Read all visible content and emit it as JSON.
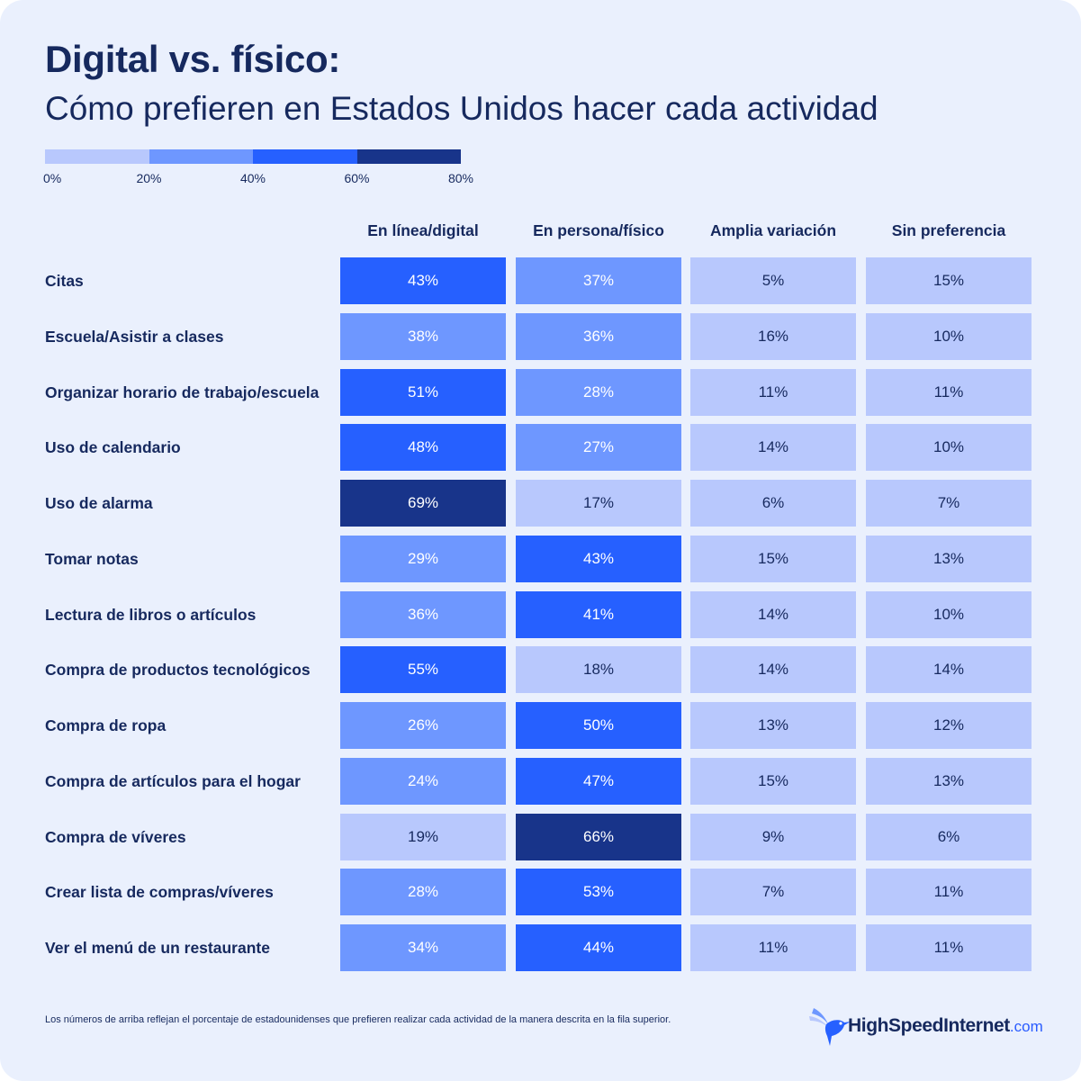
{
  "title": "Digital vs. físico:",
  "subtitle": "Cómo prefieren en Estados Unidos hacer cada actividad",
  "legend": {
    "ticks": [
      "0%",
      "20%",
      "40%",
      "60%",
      "80%"
    ],
    "colors": [
      "#b8c8fd",
      "#6e97ff",
      "#2660ff",
      "#18348a"
    ]
  },
  "colors": {
    "title": "#16295e",
    "background": "#eaf0fd",
    "light_text": "#16295e",
    "dark_text": "#ffffff"
  },
  "chart_data": {
    "type": "table",
    "title": "Digital vs. físico:",
    "subtitle": "Cómo prefieren en Estados Unidos hacer cada actividad",
    "columns": [
      "En línea/digital",
      "En persona/físico",
      "Amplia variación",
      "Sin preferencia"
    ],
    "rows": [
      {
        "label": "Citas",
        "values": [
          43,
          37,
          5,
          15
        ]
      },
      {
        "label": "Escuela/Asistir a clases",
        "values": [
          38,
          36,
          16,
          10
        ]
      },
      {
        "label": "Organizar horario de trabajo/escuela",
        "values": [
          51,
          28,
          11,
          11
        ]
      },
      {
        "label": "Uso de calendario",
        "values": [
          48,
          27,
          14,
          10
        ]
      },
      {
        "label": "Uso de alarma",
        "values": [
          69,
          17,
          6,
          7
        ]
      },
      {
        "label": "Tomar notas",
        "values": [
          29,
          43,
          15,
          13
        ]
      },
      {
        "label": "Lectura de libros o artículos",
        "values": [
          36,
          41,
          14,
          10
        ]
      },
      {
        "label": "Compra de productos tecnológicos",
        "values": [
          55,
          18,
          14,
          14
        ]
      },
      {
        "label": "Compra de ropa",
        "values": [
          26,
          50,
          13,
          12
        ]
      },
      {
        "label": "Compra de artículos para el hogar",
        "values": [
          24,
          47,
          15,
          13
        ]
      },
      {
        "label": "Compra de víveres",
        "values": [
          19,
          66,
          9,
          6
        ]
      },
      {
        "label": "Crear lista de compras/víveres",
        "values": [
          28,
          53,
          7,
          11
        ]
      },
      {
        "label": "Ver el menú de un restaurante",
        "values": [
          34,
          44,
          11,
          11
        ]
      }
    ],
    "unit": "%",
    "color_scale_breaks": [
      0,
      20,
      40,
      60,
      80
    ]
  },
  "footnote": "Los números de arriba reflejan el porcentaje de estadounidenses que prefieren realizar cada actividad de la manera descrita en la fila superior.",
  "logo": {
    "name": "HighSpeedInternet",
    "suffix": ".com",
    "icon": "hummingbird-icon"
  }
}
